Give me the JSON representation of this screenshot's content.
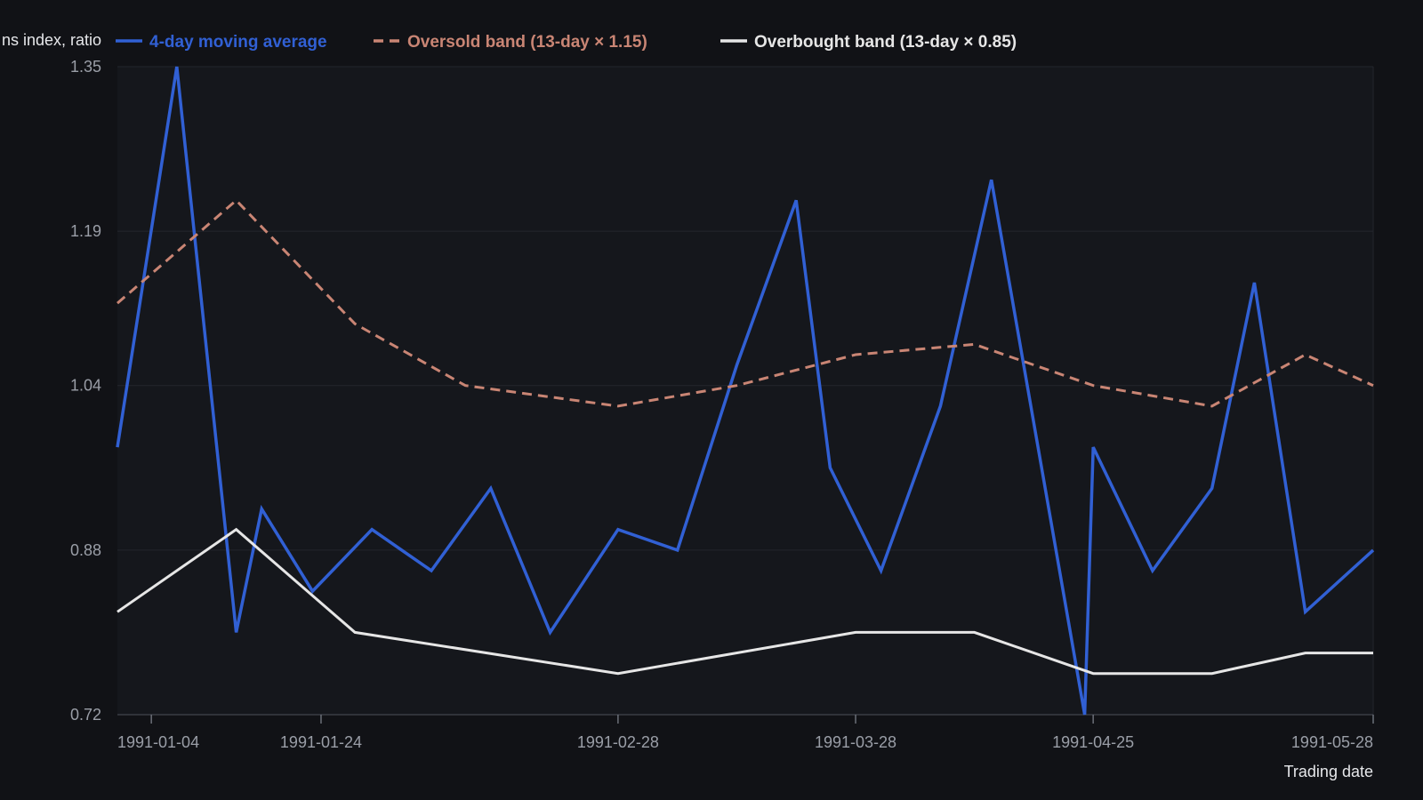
{
  "chart_data": {
    "type": "line",
    "title": "",
    "xlabel": "Trading date",
    "ylabel": "ns index, ratio",
    "ylim": [
      0.72,
      1.35
    ],
    "yticks": [
      "1.35",
      "1.19",
      "1.04",
      "0.88",
      "0.72"
    ],
    "xticks": [
      "1991-01-04",
      "1991-01-24",
      "1991-02-28",
      "1991-03-28",
      "1991-04-25",
      "1991-05-28"
    ],
    "xlim": [
      "1990-12-31",
      "1991-05-28"
    ],
    "grid": true,
    "legend_position": "top",
    "colors": {
      "background": "#111216",
      "plot_background": "#15171c",
      "moving_average": "#3160d4",
      "oversold": "#c98574",
      "overbought": "#e6e6e6"
    },
    "series": [
      {
        "name": "4-day moving average",
        "style": "solid",
        "x": [
          "1990-12-31",
          "1991-01-07",
          "1991-01-14",
          "1991-01-17",
          "1991-01-23",
          "1991-01-30",
          "1991-02-06",
          "1991-02-13",
          "1991-02-20",
          "1991-02-28",
          "1991-03-07",
          "1991-03-14",
          "1991-03-21",
          "1991-03-25",
          "1991-03-31",
          "1991-04-07",
          "1991-04-13",
          "1991-04-24",
          "1991-04-25",
          "1991-05-02",
          "1991-05-09",
          "1991-05-14",
          "1991-05-20",
          "1991-05-28"
        ],
        "values": [
          0.98,
          1.35,
          0.8,
          0.92,
          0.84,
          0.9,
          0.86,
          0.94,
          0.8,
          0.9,
          0.88,
          1.06,
          1.22,
          0.96,
          0.86,
          1.02,
          1.24,
          0.72,
          0.98,
          0.86,
          0.94,
          1.14,
          0.82,
          0.88
        ]
      },
      {
        "name": "Oversold band (13-day × 1.15)",
        "style": "dashed",
        "x": [
          "1990-12-31",
          "1991-01-07",
          "1991-01-14",
          "1991-01-28",
          "1991-02-10",
          "1991-02-28",
          "1991-03-14",
          "1991-03-28",
          "1991-04-11",
          "1991-04-25",
          "1991-05-09",
          "1991-05-20",
          "1991-05-28"
        ],
        "values": [
          1.12,
          1.17,
          1.22,
          1.1,
          1.04,
          1.02,
          1.04,
          1.07,
          1.08,
          1.04,
          1.02,
          1.07,
          1.04
        ]
      },
      {
        "name": "Overbought band (13-day × 0.85)",
        "style": "solid",
        "x": [
          "1990-12-31",
          "1991-01-14",
          "1991-01-28",
          "1991-02-28",
          "1991-03-28",
          "1991-04-11",
          "1991-04-25",
          "1991-05-09",
          "1991-05-20",
          "1991-05-28"
        ],
        "values": [
          0.82,
          0.9,
          0.8,
          0.76,
          0.8,
          0.8,
          0.76,
          0.76,
          0.78,
          0.78
        ]
      }
    ]
  }
}
